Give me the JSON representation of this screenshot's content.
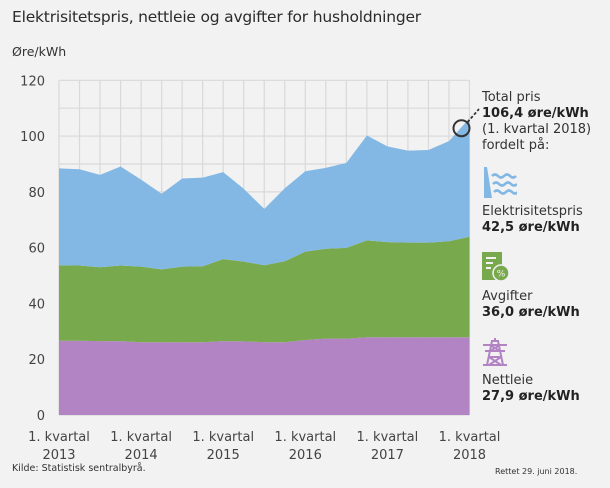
{
  "title": "Elektrisitetspris, nettleie og avgifter for husholdninger",
  "unit_label": "Øre/kWh",
  "total": {
    "label": "Total pris",
    "value": "106,4 øre/kWh",
    "period": "(1. kvartal 2018)",
    "breakdown_label": "fordelt på:"
  },
  "legend": [
    {
      "name": "Elektrisitetspris",
      "value": "42,5 øre/kWh",
      "color": "#83b8e5",
      "icon": "hydro-power-icon"
    },
    {
      "name": "Avgifter",
      "value": "36,0 øre/kWh",
      "color": "#78a94d",
      "icon": "tax-document-icon"
    },
    {
      "name": "Nettleie",
      "value": "27,9 øre/kWh",
      "color": "#b284c3",
      "icon": "power-pylon-icon"
    }
  ],
  "footer": {
    "source": "Kilde: Statistisk sentralbyrå.",
    "updated": "Rettet 29. juni 2018."
  },
  "chart_data": {
    "type": "area",
    "stacked": true,
    "title": "Elektrisitetspris, nettleie og avgifter for husholdninger",
    "ylabel": "Øre/kWh",
    "xlabel": "",
    "ylim": [
      0,
      120
    ],
    "yticks": [
      0,
      20,
      40,
      60,
      80,
      100,
      120
    ],
    "grid": true,
    "x": [
      "2013K1",
      "2013K2",
      "2013K3",
      "2013K4",
      "2014K1",
      "2014K2",
      "2014K3",
      "2014K4",
      "2015K1",
      "2015K2",
      "2015K3",
      "2015K4",
      "2016K1",
      "2016K2",
      "2016K3",
      "2016K4",
      "2017K1",
      "2017K2",
      "2017K3",
      "2017K4",
      "2018K1"
    ],
    "xtick_labels": [
      {
        "line1": "1. kvartal",
        "line2": "2013"
      },
      {
        "line1": "1. kvartal",
        "line2": "2014"
      },
      {
        "line1": "1. kvartal",
        "line2": "2015"
      },
      {
        "line1": "1. kvartal",
        "line2": "2016"
      },
      {
        "line1": "1. kvartal",
        "line2": "2017"
      },
      {
        "line1": "1. kvartal",
        "line2": "2018"
      }
    ],
    "series": [
      {
        "name": "Nettleie",
        "color": "#b284c3",
        "values": [
          26.6,
          26.6,
          26.5,
          26.5,
          26.1,
          26.1,
          26.1,
          26.1,
          26.5,
          26.4,
          26.1,
          26.1,
          26.9,
          27.4,
          27.4,
          27.9,
          27.9,
          27.9,
          27.9,
          27.9,
          27.9
        ]
      },
      {
        "name": "Avgifter",
        "color": "#78a94d",
        "values": [
          27.1,
          27.0,
          26.5,
          27.1,
          27.1,
          26.1,
          27.1,
          27.2,
          29.4,
          28.6,
          27.6,
          29.0,
          31.7,
          32.2,
          32.5,
          34.7,
          34.1,
          33.9,
          33.9,
          34.4,
          36.0
        ]
      },
      {
        "name": "Elektrisitetspris",
        "color": "#83b8e5",
        "values": [
          34.7,
          34.5,
          33.1,
          35.5,
          31.2,
          27.1,
          31.6,
          31.8,
          31.2,
          26.1,
          20.2,
          26.2,
          28.8,
          29.0,
          30.5,
          37.6,
          34.3,
          33.0,
          33.2,
          35.9,
          42.5
        ]
      }
    ],
    "totals": [
      88.4,
      88.1,
      86.1,
      89.1,
      84.4,
      79.3,
      84.8,
      85.1,
      87.1,
      81.1,
      73.9,
      81.3,
      87.4,
      88.6,
      90.4,
      100.2,
      96.3,
      94.8,
      95.0,
      98.2,
      106.4
    ],
    "annotation": "Total pris 106,4 øre/kWh (1. kvartal 2018)"
  }
}
